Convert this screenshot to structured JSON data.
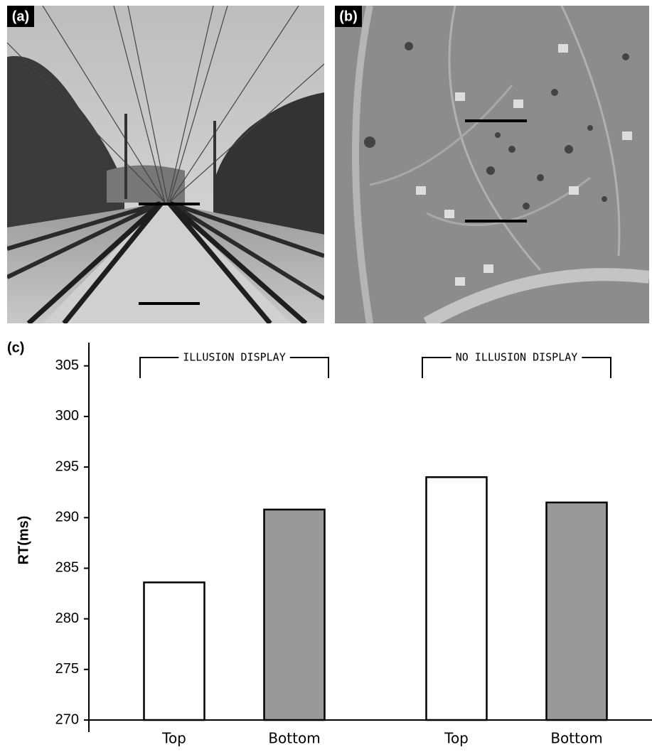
{
  "panel_labels": [
    "(a)",
    "(b)",
    "(c)"
  ],
  "chart_data": {
    "type": "bar",
    "ylabel": "RT(ms)",
    "categories": [
      "Top",
      "Bottom",
      "Top",
      "Bottom"
    ],
    "values": [
      283.6,
      290.8,
      294.0,
      291.5
    ],
    "colors": [
      "#ffffff",
      "#999999",
      "#ffffff",
      "#999999"
    ],
    "annotations": [
      "ILLUSION DISPLAY",
      "NO ILLUSION DISPLAY"
    ],
    "ylim": [
      270,
      307.3
    ],
    "yticks": [
      270,
      275,
      280,
      285,
      290,
      295,
      300,
      305
    ],
    "grid": false
  }
}
